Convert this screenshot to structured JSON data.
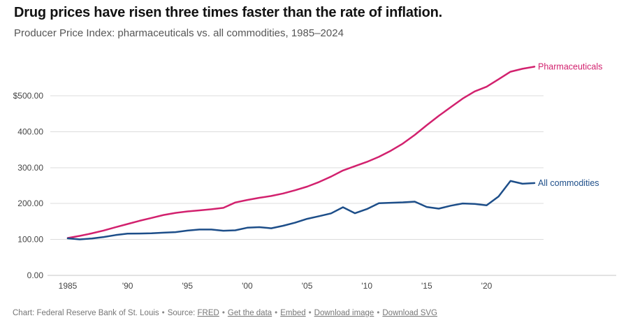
{
  "header": {
    "title": "Drug prices have risen three times faster than the rate of inflation.",
    "subtitle": "Producer Price Index: pharmaceuticals vs. all commodities, 1985–2024"
  },
  "chart_data": {
    "type": "line",
    "title": "Drug prices have risen three times faster than the rate of inflation.",
    "subtitle": "Producer Price Index: pharmaceuticals vs. all commodities, 1985–2024",
    "x": [
      1985,
      1986,
      1987,
      1988,
      1989,
      1990,
      1991,
      1992,
      1993,
      1994,
      1995,
      1996,
      1997,
      1998,
      1999,
      2000,
      2001,
      2002,
      2003,
      2004,
      2005,
      2006,
      2007,
      2008,
      2009,
      2010,
      2011,
      2012,
      2013,
      2014,
      2015,
      2016,
      2017,
      2018,
      2019,
      2020,
      2021,
      2022,
      2023,
      2024
    ],
    "series": [
      {
        "name": "Pharmaceuticals",
        "color": "#d2216e",
        "values": [
          104,
          110,
          117,
          125,
          134,
          143,
          152,
          160,
          168,
          174,
          178,
          181,
          184,
          188,
          203,
          210,
          216,
          221,
          228,
          237,
          247,
          260,
          275,
          292,
          304,
          316,
          330,
          347,
          367,
          391,
          418,
          444,
          468,
          492,
          512,
          525,
          546,
          567,
          575,
          581
        ]
      },
      {
        "name": "All commodities",
        "color": "#1d4e89",
        "values": [
          103.2,
          100.2,
          102.8,
          106.9,
          112.2,
          116.3,
          116.5,
          117.2,
          118.9,
          120.4,
          124.7,
          127.7,
          127.6,
          124.4,
          125.5,
          132.7,
          134.2,
          131.1,
          138.1,
          146.7,
          157.4,
          164.7,
          172.6,
          189.6,
          172.9,
          184.7,
          201.0,
          202.2,
          203.4,
          205.3,
          190.4,
          185.8,
          194.0,
          200.2,
          199.0,
          195.1,
          219.6,
          262.8,
          255.0,
          257.0
        ]
      }
    ],
    "x_axis": {
      "range": [
        1985,
        2024
      ],
      "ticks": [
        {
          "value": 1985,
          "label": "1985"
        },
        {
          "value": 1990,
          "label": "'90"
        },
        {
          "value": 1995,
          "label": "'95"
        },
        {
          "value": 2000,
          "label": "'00"
        },
        {
          "value": 2005,
          "label": "'05"
        },
        {
          "value": 2010,
          "label": "'10"
        },
        {
          "value": 2015,
          "label": "'15"
        },
        {
          "value": 2020,
          "label": "'20"
        }
      ]
    },
    "y_axis": {
      "range": [
        0,
        590
      ],
      "gridline_interval": 100,
      "ticks": [
        {
          "value": 500,
          "label": "$500.00"
        },
        {
          "value": 400,
          "label": "400.00"
        },
        {
          "value": 300,
          "label": "300.00"
        },
        {
          "value": 200,
          "label": "200.00"
        },
        {
          "value": 100,
          "label": "100.00"
        },
        {
          "value": 0,
          "label": "0.00"
        }
      ]
    },
    "grid": true,
    "legend_position": "labels-at-line-ends-right"
  },
  "colors": {
    "grid": "#dcdcdc",
    "baseline": "#c4c4c4",
    "axis_text": "#454545",
    "pharma": "#d2216e",
    "commodities": "#1d4e89"
  },
  "footer": {
    "chart_credit": "Chart: Federal Reserve Bank of St. Louis",
    "source_label": "Source:",
    "separator": "•",
    "links": [
      "FRED",
      "Get the data",
      "Embed",
      "Download image",
      "Download SVG"
    ]
  }
}
